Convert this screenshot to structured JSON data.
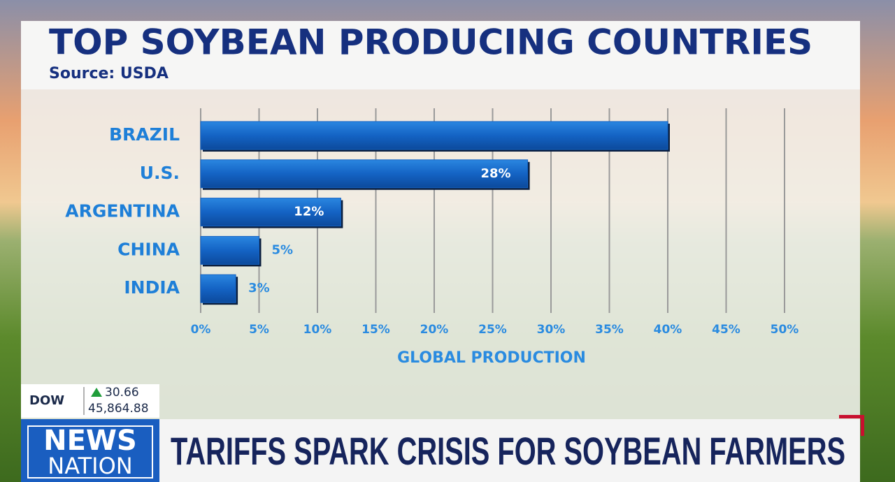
{
  "chart_data": {
    "type": "hbar",
    "title": "TOP SOYBEAN PRODUCING COUNTRIES",
    "subtitle": "Source: USDA",
    "categories": [
      "BRAZIL",
      "U.S.",
      "ARGENTINA",
      "CHINA",
      "INDIA"
    ],
    "values": [
      40,
      28,
      12,
      5,
      3
    ],
    "value_labels": [
      null,
      "28%",
      "12%",
      "5%",
      "3%"
    ],
    "color": "#1463c4",
    "xlabel": "GLOBAL PRODUCTION",
    "xlim": [
      0,
      50
    ],
    "xticks": [
      {
        "value": 0,
        "label": "0%"
      },
      {
        "value": 5,
        "label": "5%"
      },
      {
        "value": 10,
        "label": "10%"
      },
      {
        "value": 15,
        "label": "15%"
      },
      {
        "value": 20,
        "label": "20%"
      },
      {
        "value": 25,
        "label": "25%"
      },
      {
        "value": 30,
        "label": "30%"
      },
      {
        "value": 35,
        "label": "35%"
      },
      {
        "value": 40,
        "label": "40%"
      },
      {
        "value": 45,
        "label": "45%"
      },
      {
        "value": 50,
        "label": "50%"
      }
    ],
    "grid": true
  },
  "ticker": {
    "index": "DOW",
    "change": "30.66",
    "level": "45,864.88"
  },
  "logo": {
    "line1": "NEWS",
    "line2": "NATION"
  },
  "headline": "TARIFFS SPARK CRISIS FOR SOYBEAN FARMERS"
}
